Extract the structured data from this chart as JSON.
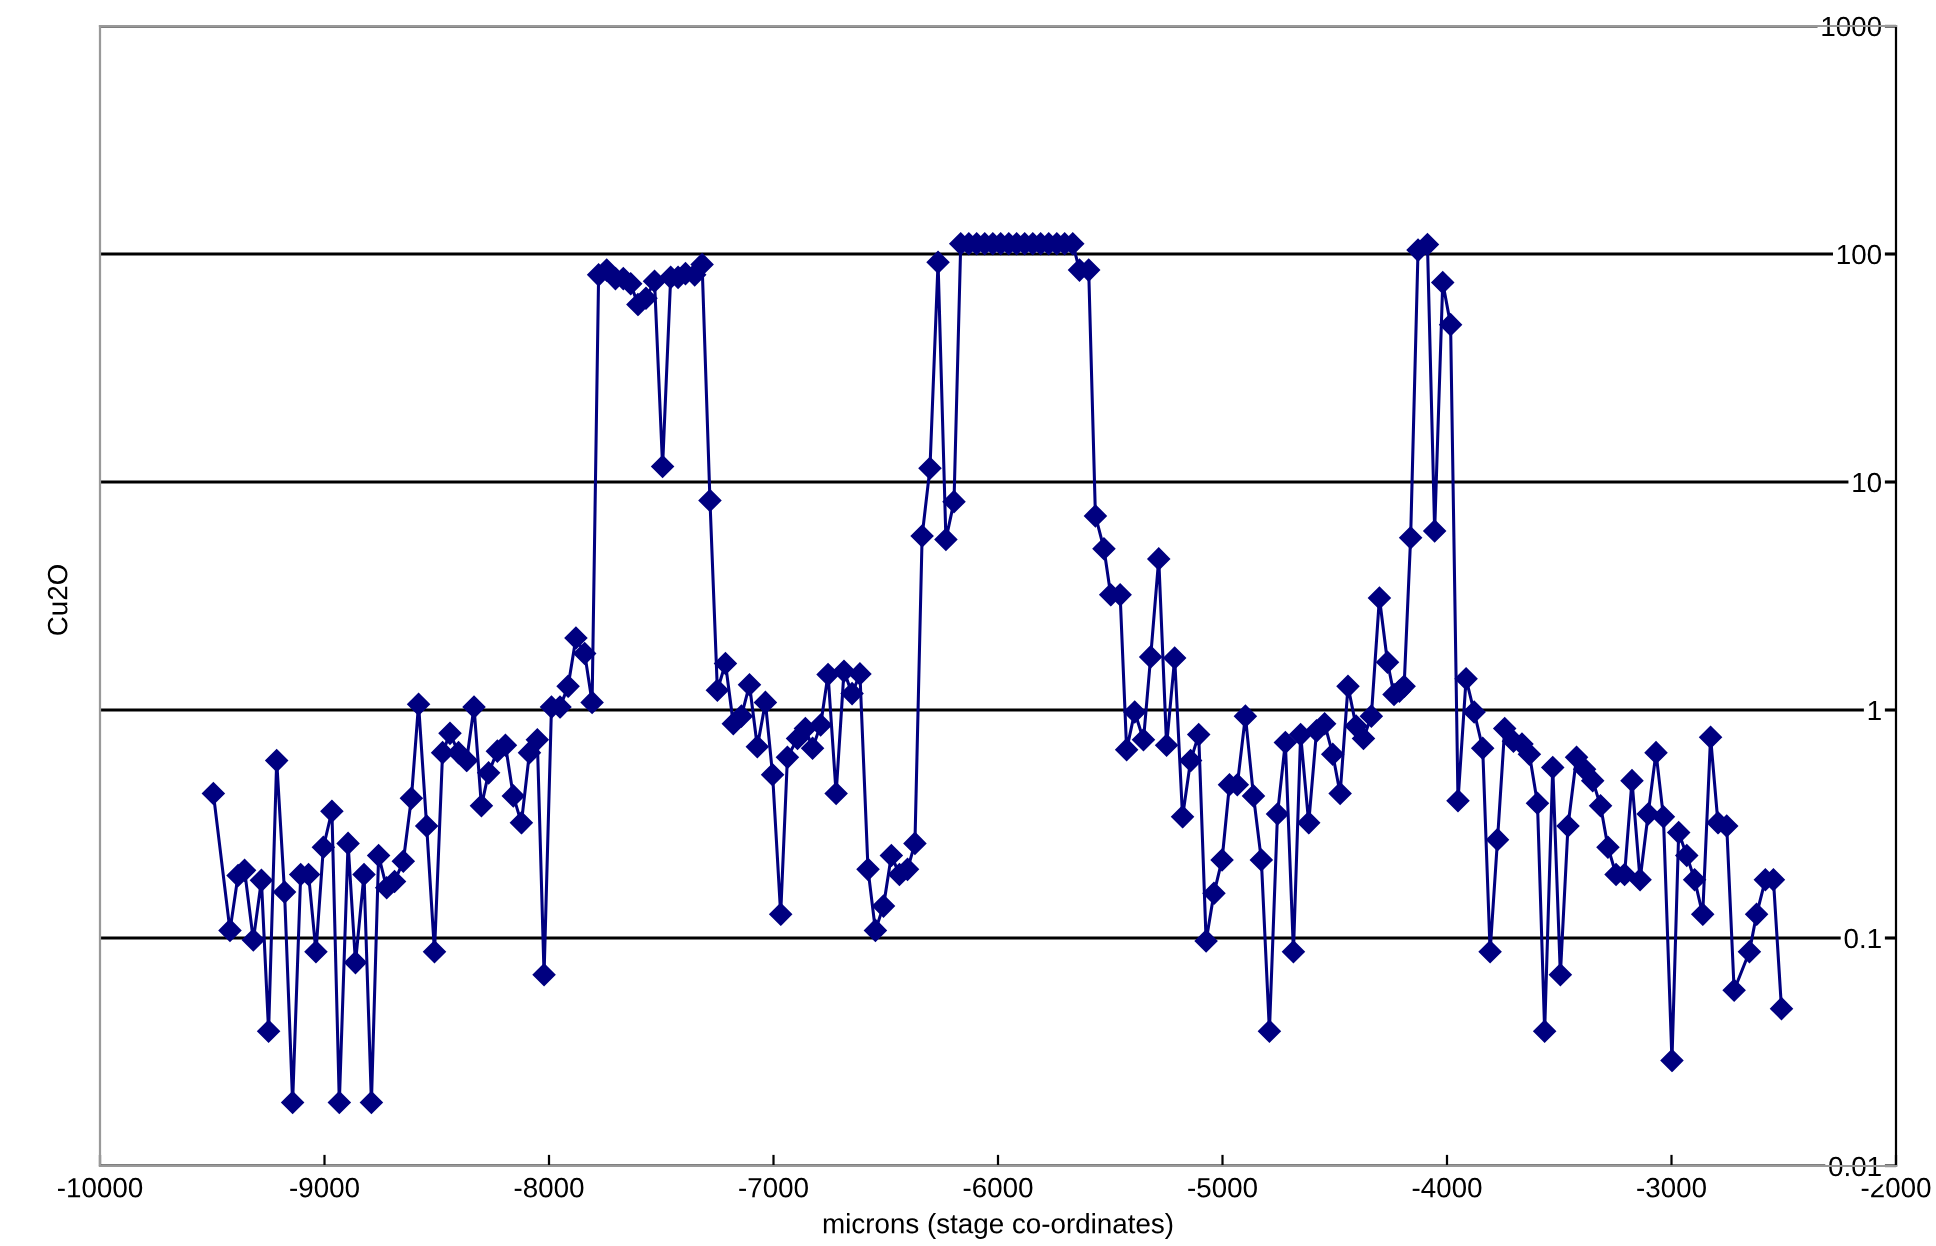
{
  "chart_data": {
    "type": "line",
    "xlabel": "microns (stage co-ordinates)",
    "ylabel": "Cu2O",
    "log": "y",
    "grid": "y",
    "marker": "diamond",
    "line_style": "solid",
    "xlim": [
      -10000,
      -2000
    ],
    "xticks": [
      -10000,
      -9000,
      -8000,
      -7000,
      -6000,
      -5000,
      -4000,
      -3000,
      -2000
    ],
    "ylim": [
      0.01,
      1000
    ],
    "yticks": [
      0.01,
      0.1,
      1,
      10,
      100,
      1000
    ],
    "series": [
      {
        "color": "#000080",
        "x": [
          -9495,
          -9421,
          -9385,
          -9356,
          -9317,
          -9281,
          -9249,
          -9213,
          -9178,
          -9142,
          -9106,
          -9071,
          -9038,
          -9005,
          -8967,
          -8934,
          -8895,
          -8862,
          -8824,
          -8791,
          -8759,
          -8723,
          -8688,
          -8649,
          -8613,
          -8581,
          -8545,
          -8510,
          -8474,
          -8441,
          -8403,
          -8367,
          -8334,
          -8301,
          -8269,
          -8230,
          -8194,
          -8159,
          -8123,
          -8087,
          -8052,
          -8022,
          -7989,
          -7951,
          -7915,
          -7880,
          -7841,
          -7808,
          -7779,
          -7743,
          -7704,
          -7669,
          -7636,
          -7604,
          -7568,
          -7530,
          -7494,
          -7458,
          -7425,
          -7392,
          -7351,
          -7318,
          -7283,
          -7250,
          -7214,
          -7179,
          -7143,
          -7107,
          -7072,
          -7036,
          -7004,
          -6968,
          -6938,
          -6893,
          -6858,
          -6826,
          -6790,
          -6757,
          -6721,
          -6686,
          -6650,
          -6615,
          -6579,
          -6546,
          -6510,
          -6475,
          -6439,
          -6403,
          -6370,
          -6338,
          -6303,
          -6267,
          -6232,
          -6196,
          -6166,
          -6130,
          -6095,
          -6059,
          -6023,
          -5988,
          -5952,
          -5917,
          -5881,
          -5845,
          -5810,
          -5774,
          -5738,
          -5703,
          -5667,
          -5637,
          -5596,
          -5566,
          -5528,
          -5498,
          -5456,
          -5427,
          -5391,
          -5352,
          -5320,
          -5284,
          -5249,
          -5213,
          -5178,
          -5142,
          -5106,
          -5073,
          -5038,
          -5002,
          -4969,
          -4934,
          -4898,
          -4862,
          -4827,
          -4791,
          -4755,
          -4720,
          -4684,
          -4652,
          -4616,
          -4581,
          -4545,
          -4509,
          -4476,
          -4441,
          -4405,
          -4372,
          -4337,
          -4301,
          -4265,
          -4236,
          -4212,
          -4191,
          -4162,
          -4129,
          -4087,
          -4055,
          -4019,
          -3984,
          -3951,
          -3915,
          -3879,
          -3841,
          -3808,
          -3775,
          -3743,
          -3704,
          -3666,
          -3633,
          -3597,
          -3565,
          -3529,
          -3495,
          -3461,
          -3423,
          -3387,
          -3351,
          -3316,
          -3283,
          -3247,
          -3209,
          -3176,
          -3140,
          -3104,
          -3069,
          -3036,
          -2998,
          -2968,
          -2932,
          -2897,
          -2861,
          -2826,
          -2793,
          -2754,
          -2721,
          -2653,
          -2621,
          -2582,
          -2546,
          -2510
        ],
        "values": [
          0.43,
          0.108,
          0.188,
          0.198,
          0.098,
          0.179,
          0.039,
          0.6,
          0.159,
          0.019,
          0.19,
          0.19,
          0.087,
          0.25,
          0.36,
          0.019,
          0.26,
          0.078,
          0.19,
          0.019,
          0.23,
          0.166,
          0.177,
          0.217,
          0.41,
          1.06,
          0.31,
          0.087,
          0.65,
          0.79,
          0.65,
          0.6,
          1.03,
          0.38,
          0.53,
          0.66,
          0.7,
          0.42,
          0.32,
          0.65,
          0.74,
          0.069,
          1.03,
          1.03,
          1.27,
          2.07,
          1.77,
          1.08,
          81,
          85,
          78,
          78,
          74,
          60,
          64,
          76,
          11.7,
          79,
          79,
          82,
          81,
          90,
          8.3,
          1.22,
          1.6,
          0.87,
          0.94,
          1.29,
          0.69,
          1.08,
          0.52,
          0.127,
          0.62,
          0.75,
          0.83,
          0.68,
          0.86,
          1.43,
          0.43,
          1.48,
          1.18,
          1.44,
          0.2,
          0.108,
          0.138,
          0.23,
          0.19,
          0.2,
          0.26,
          5.8,
          11.5,
          92,
          5.6,
          8.2,
          111,
          111,
          111,
          111,
          111,
          111,
          111,
          111,
          111,
          111,
          111,
          111,
          111,
          111,
          111,
          85,
          85,
          7.1,
          5.1,
          3.2,
          3.2,
          0.67,
          0.98,
          0.74,
          1.71,
          4.6,
          0.7,
          1.69,
          0.34,
          0.6,
          0.78,
          0.097,
          0.157,
          0.22,
          0.47,
          0.47,
          0.94,
          0.42,
          0.22,
          0.039,
          0.35,
          0.72,
          0.087,
          0.78,
          0.32,
          0.81,
          0.87,
          0.64,
          0.43,
          1.27,
          0.85,
          0.75,
          0.94,
          3.1,
          1.62,
          1.17,
          1.21,
          1.27,
          5.7,
          104,
          110,
          6.1,
          75,
          49,
          0.4,
          1.37,
          0.98,
          0.68,
          0.087,
          0.27,
          0.83,
          0.73,
          0.71,
          0.64,
          0.39,
          0.039,
          0.56,
          0.069,
          0.31,
          0.62,
          0.55,
          0.49,
          0.38,
          0.25,
          0.19,
          0.19,
          0.49,
          0.18,
          0.35,
          0.65,
          0.34,
          0.029,
          0.29,
          0.23,
          0.18,
          0.127,
          0.76,
          0.32,
          0.31,
          0.059,
          0.087,
          0.127,
          0.18,
          0.18,
          0.049
        ]
      }
    ]
  }
}
